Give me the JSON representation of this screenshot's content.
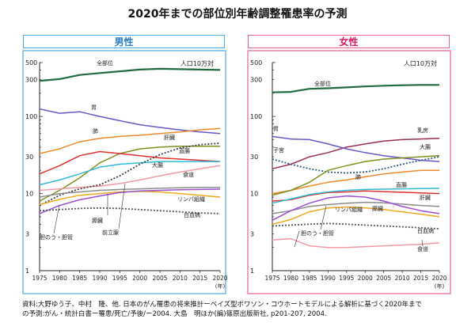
{
  "title": "2020年までの部位別年齢調整罹患率の予測",
  "source": {
    "line1": "資料:大野ゆう子、中村　隆、他. 日本のがん罹患の将来推計ーベイズ型ポワソン・コウホートモデルによる解析に基づく2020年まで",
    "line2": "の予測:がん・統計白書ー罹患/死亡/予後/ー2004. 大島　明ほか(編)篠原出版新社, p201-207, 2004."
  },
  "chart_data": [
    {
      "type": "line",
      "title": "男性",
      "unit_label": "人口10万対",
      "x": [
        1975,
        1980,
        1985,
        1990,
        1995,
        2000,
        2005,
        2010,
        2015,
        2020
      ],
      "xtick_labels": [
        "1975",
        "1980",
        "1985",
        "1990",
        "1995",
        "2000",
        "2005",
        "2010",
        "2015",
        "2020"
      ],
      "x_unit": "(年)",
      "y_scale": "log",
      "ylim": [
        1,
        500
      ],
      "yticks": [
        1,
        3,
        10,
        30,
        100,
        300,
        500
      ],
      "grid": false,
      "series": [
        {
          "name": "全部位",
          "color": "#1f6b3f",
          "style": "solid",
          "values": [
            290,
            305,
            345,
            365,
            385,
            405,
            415,
            410,
            405,
            400
          ]
        },
        {
          "name": "胃",
          "color": "#6a55c9",
          "style": "solid",
          "values": [
            125,
            110,
            115,
            100,
            88,
            78,
            72,
            67,
            63,
            60
          ]
        },
        {
          "name": "肺",
          "color": "#ef8a2c",
          "style": "solid",
          "values": [
            33,
            38,
            47,
            52,
            55,
            57,
            60,
            63,
            67,
            70
          ]
        },
        {
          "name": "前立腺",
          "color": "#7f8f1e",
          "style": "solid",
          "values": [
            8,
            11,
            16,
            25,
            33,
            38,
            40,
            41,
            41,
            41
          ]
        },
        {
          "name": "肝臓",
          "color": "#e0322f",
          "style": "solid",
          "values": [
            18,
            23,
            31,
            35,
            33,
            31,
            29,
            28,
            27,
            26
          ]
        },
        {
          "name": "大腸",
          "color": "#2ebbd9",
          "style": "solid",
          "values": [
            13,
            15,
            18,
            22,
            24,
            25,
            26,
            26,
            26,
            26
          ]
        },
        {
          "name": "食道",
          "color": "#ef9aa6",
          "style": "solid",
          "values": [
            11,
            11.5,
            12,
            12.5,
            13.5,
            15,
            17,
            19,
            21,
            23
          ]
        },
        {
          "name": "直腸",
          "color": "#3f3f3f",
          "style": "dotted",
          "values": [
            7,
            9.5,
            11.5,
            13,
            17,
            24,
            32,
            39,
            43,
            45
          ]
        },
        {
          "name": "膵臓",
          "color": "#8c8c8c",
          "style": "solid",
          "values": [
            9,
            10,
            10.5,
            11,
            11.3,
            11.5,
            11.7,
            11.9,
            12,
            12
          ]
        },
        {
          "name": "胆のう・胆管",
          "color": "#f0a81e",
          "style": "solid",
          "values": [
            7.2,
            8.4,
            9.5,
            10,
            10.5,
            10.7,
            10.5,
            10,
            9.5,
            9
          ]
        },
        {
          "name": "リンパ組織",
          "color": "#9c4fd4",
          "style": "solid",
          "values": [
            5.5,
            7,
            8.3,
            9.3,
            10.3,
            10.8,
            11,
            11.2,
            11.3,
            11.4
          ]
        },
        {
          "name": "白血病",
          "color": "#555555",
          "style": "dotted",
          "values": [
            6,
            6.2,
            6.4,
            6.5,
            6.4,
            6.2,
            6,
            5.8,
            5.6,
            5.5
          ]
        }
      ],
      "annotations": [
        "全部位",
        "胃",
        "肺",
        "前立腺",
        "肝臓",
        "大腸",
        "食道",
        "直腸",
        "膵臓",
        "胆のう・胆管",
        "リンパ組織",
        "白血病"
      ]
    },
    {
      "type": "line",
      "title": "女性",
      "unit_label": "人口10万対",
      "x": [
        1975,
        1980,
        1985,
        1990,
        1995,
        2000,
        2005,
        2010,
        2015,
        2020
      ],
      "xtick_labels": [
        "1975",
        "1980",
        "1985",
        "1990",
        "1995",
        "2000",
        "2005",
        "2010",
        "2015",
        "2020"
      ],
      "x_unit": "(年)",
      "y_scale": "log",
      "ylim": [
        1,
        500
      ],
      "yticks": [
        1,
        3,
        10,
        30,
        100,
        300,
        500
      ],
      "grid": false,
      "series": [
        {
          "name": "全部位",
          "color": "#1f6b3f",
          "style": "solid",
          "values": [
            205,
            208,
            228,
            232,
            238,
            245,
            250,
            254,
            256,
            256
          ]
        },
        {
          "name": "乳房",
          "color": "#9b2d55",
          "style": "solid",
          "values": [
            21,
            24,
            30,
            34,
            40,
            44,
            48,
            50,
            51,
            52
          ]
        },
        {
          "name": "胃",
          "color": "#6a55c9",
          "style": "solid",
          "values": [
            55,
            51,
            50,
            44,
            38,
            34,
            31,
            29,
            27,
            26
          ]
        },
        {
          "name": "子宮",
          "color": "#2c5f7a",
          "style": "dotted",
          "values": [
            28,
            24,
            21,
            19,
            18.5,
            19,
            21,
            24,
            27,
            30
          ]
        },
        {
          "name": "肺",
          "color": "#ef8a2c",
          "style": "solid",
          "values": [
            10,
            11,
            12.5,
            14,
            15,
            16.5,
            18,
            19,
            20,
            20
          ]
        },
        {
          "name": "肝臓",
          "color": "#e0322f",
          "style": "solid",
          "values": [
            8,
            8.3,
            9.5,
            10.3,
            10.5,
            10.8,
            10.6,
            10.4,
            10.2,
            10
          ]
        },
        {
          "name": "大腸",
          "color": "#7f8f1e",
          "style": "solid",
          "values": [
            9.5,
            11,
            14,
            20,
            23,
            26,
            28,
            29,
            30,
            31
          ]
        },
        {
          "name": "直腸",
          "color": "#2ebbd9",
          "style": "solid",
          "values": [
            7.5,
            8.5,
            9.7,
            10.5,
            11,
            11.3,
            11.4,
            11.5,
            11.6,
            11.7
          ]
        },
        {
          "name": "膵臓",
          "color": "#8c8c8c",
          "style": "solid",
          "values": [
            5.5,
            6,
            6.8,
            7.2,
            7.5,
            7.7,
            7.6,
            7.3,
            7,
            6.8
          ]
        },
        {
          "name": "リンパ組織",
          "color": "#9c4fd4",
          "style": "solid",
          "values": [
            4.5,
            6,
            7.5,
            8.8,
            9.3,
            9,
            8,
            6.8,
            6,
            5.5
          ]
        },
        {
          "name": "胆のう・胆管",
          "color": "#f0a81e",
          "style": "solid",
          "values": [
            4,
            4.6,
            5.8,
            6.5,
            6.7,
            6.5,
            6.2,
            5.8,
            5.4,
            5
          ]
        },
        {
          "name": "白血病",
          "color": "#555555",
          "style": "dotted",
          "values": [
            3.8,
            3.9,
            4,
            4.1,
            4,
            3.9,
            3.8,
            3.7,
            3.6,
            3.5
          ]
        },
        {
          "name": "食道",
          "color": "#ef9aa6",
          "style": "solid",
          "values": [
            2.5,
            2.6,
            2.1,
            2,
            2,
            2.05,
            2.1,
            2.15,
            2.2,
            2.3
          ]
        }
      ],
      "annotations": [
        "全部位",
        "乳房",
        "胃",
        "子宮",
        "肺",
        "肝臓",
        "大腸",
        "直腸",
        "膵臓",
        "リンパ組織",
        "胆のう・胆管",
        "白血病",
        "食道"
      ]
    }
  ]
}
